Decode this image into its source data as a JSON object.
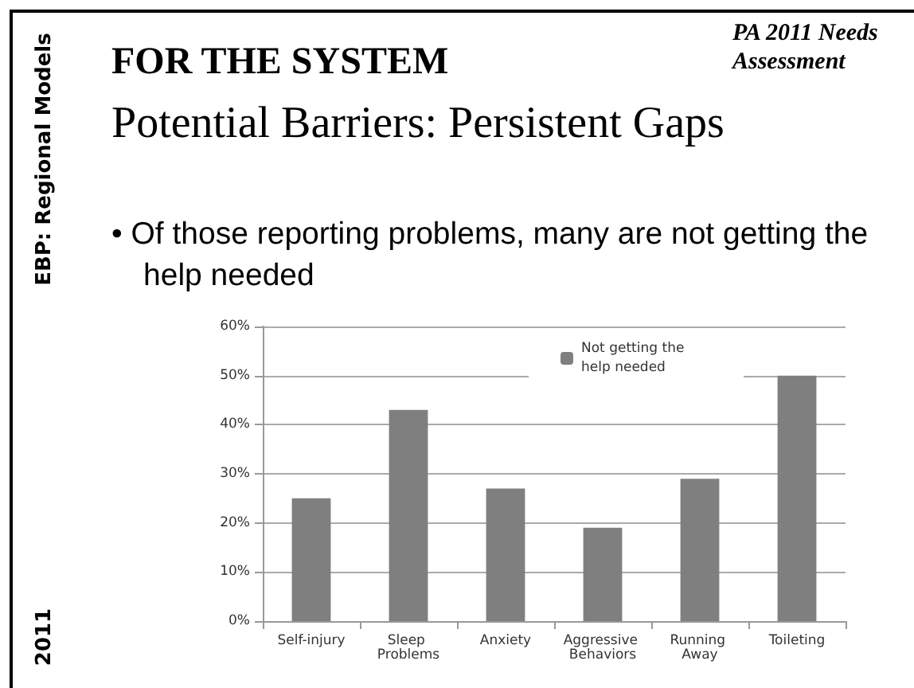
{
  "chart_data": {
    "type": "bar",
    "title": "FOR THE SYSTEM",
    "subtitle": "Potential Barriers: Persistent Gaps",
    "annotations": [
      "PA 2011 Needs Assessment",
      "• Of those reporting problems, many are not getting the help needed",
      "EBP: Regional Models",
      "2011"
    ],
    "categories": [
      "Self-injury",
      "Sleep Problems",
      "Anxiety",
      "Aggressive Behaviors",
      "Running Away",
      "Toileting"
    ],
    "series": [
      {
        "name": "Not getting the help needed",
        "color": "#7f7f7f",
        "values": [
          25,
          43,
          27,
          19,
          29,
          50
        ]
      }
    ],
    "ylim": [
      0,
      60
    ],
    "yticks": [
      {
        "value": 0,
        "label": "0%"
      },
      {
        "value": 10,
        "label": "10%"
      },
      {
        "value": 20,
        "label": "20%"
      },
      {
        "value": 30,
        "label": "30%"
      },
      {
        "value": 40,
        "label": "40%"
      },
      {
        "value": 50,
        "label": "50%"
      },
      {
        "value": 60,
        "label": "60%"
      }
    ],
    "grid": "y",
    "legend": "top"
  }
}
